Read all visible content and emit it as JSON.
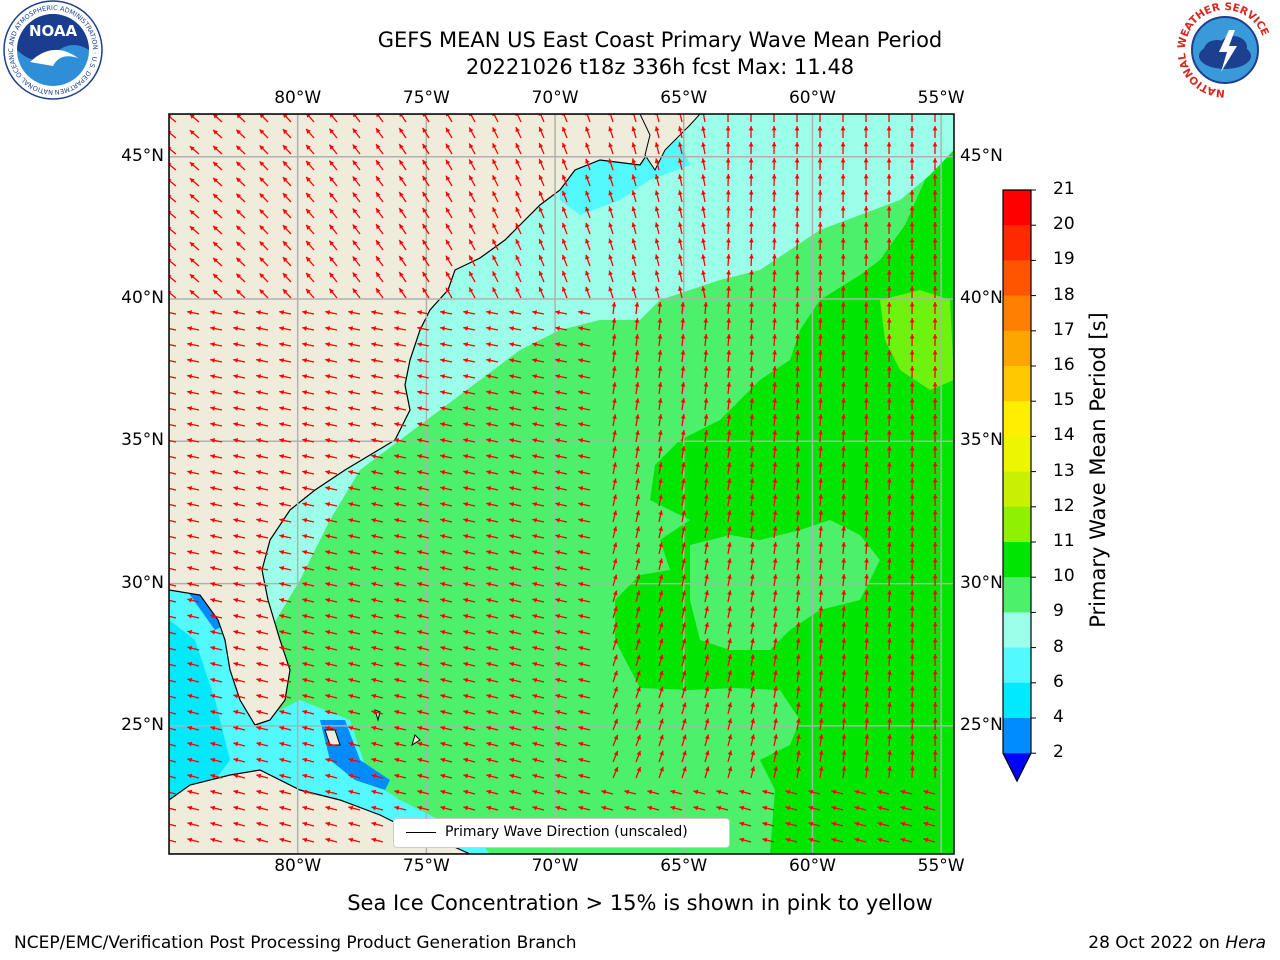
{
  "title": {
    "line1": "GEFS MEAN US East Coast Primary Wave Mean Period",
    "line2": "20221026 t18z 336h fcst   Max: 11.48"
  },
  "logos": {
    "left": {
      "name": "noaa-logo",
      "text": "NOAA",
      "ring_text": "NATIONAL OCEANIC AND ATMOSPHERIC ADMINISTRATION · U.S. DEPARTMENT OF COMMERCE"
    },
    "right": {
      "name": "nws-logo",
      "ring_text": "NATIONAL WEATHER SERVICE"
    }
  },
  "map": {
    "lon_ticks": [
      "80°W",
      "75°W",
      "70°W",
      "65°W",
      "60°W",
      "55°W"
    ],
    "lat_ticks": [
      "45°N",
      "40°N",
      "35°N",
      "30°N",
      "25°N"
    ],
    "lon_values": [
      -80,
      -75,
      -70,
      -65,
      -60,
      -55
    ],
    "lat_values": [
      45,
      40,
      35,
      30,
      25
    ],
    "lon_range": [
      -85,
      -54.5
    ],
    "lat_range": [
      20.5,
      46.5
    ],
    "land_color": "#efecdc",
    "arrow_color": "#ff0000",
    "legend_label": "Primary Wave Direction (unscaled)"
  },
  "colorbar": {
    "title": "Primary Wave Mean Period [s]",
    "labels": [
      "21",
      "20",
      "19",
      "18",
      "17",
      "16",
      "15",
      "14",
      "13",
      "12",
      "11",
      "10",
      "9",
      "8",
      "6",
      "4",
      "2"
    ],
    "colors": [
      "#ff0000",
      "#ff2a00",
      "#ff5500",
      "#ff7f00",
      "#ffa500",
      "#ffc800",
      "#ffee00",
      "#eef500",
      "#c8f000",
      "#8ff000",
      "#00e600",
      "#4cf06a",
      "#9cffe9",
      "#52f9ff",
      "#00e9ff",
      "#008cff",
      "#0000ff"
    ]
  },
  "bottom_note": "Sea Ice Concentration > 15% is shown in pink to yellow",
  "credit": "NCEP/EMC/Verification Post Processing Product Generation Branch",
  "date_prefix": "28 Oct 2022 on ",
  "date_machine": "Hera"
}
